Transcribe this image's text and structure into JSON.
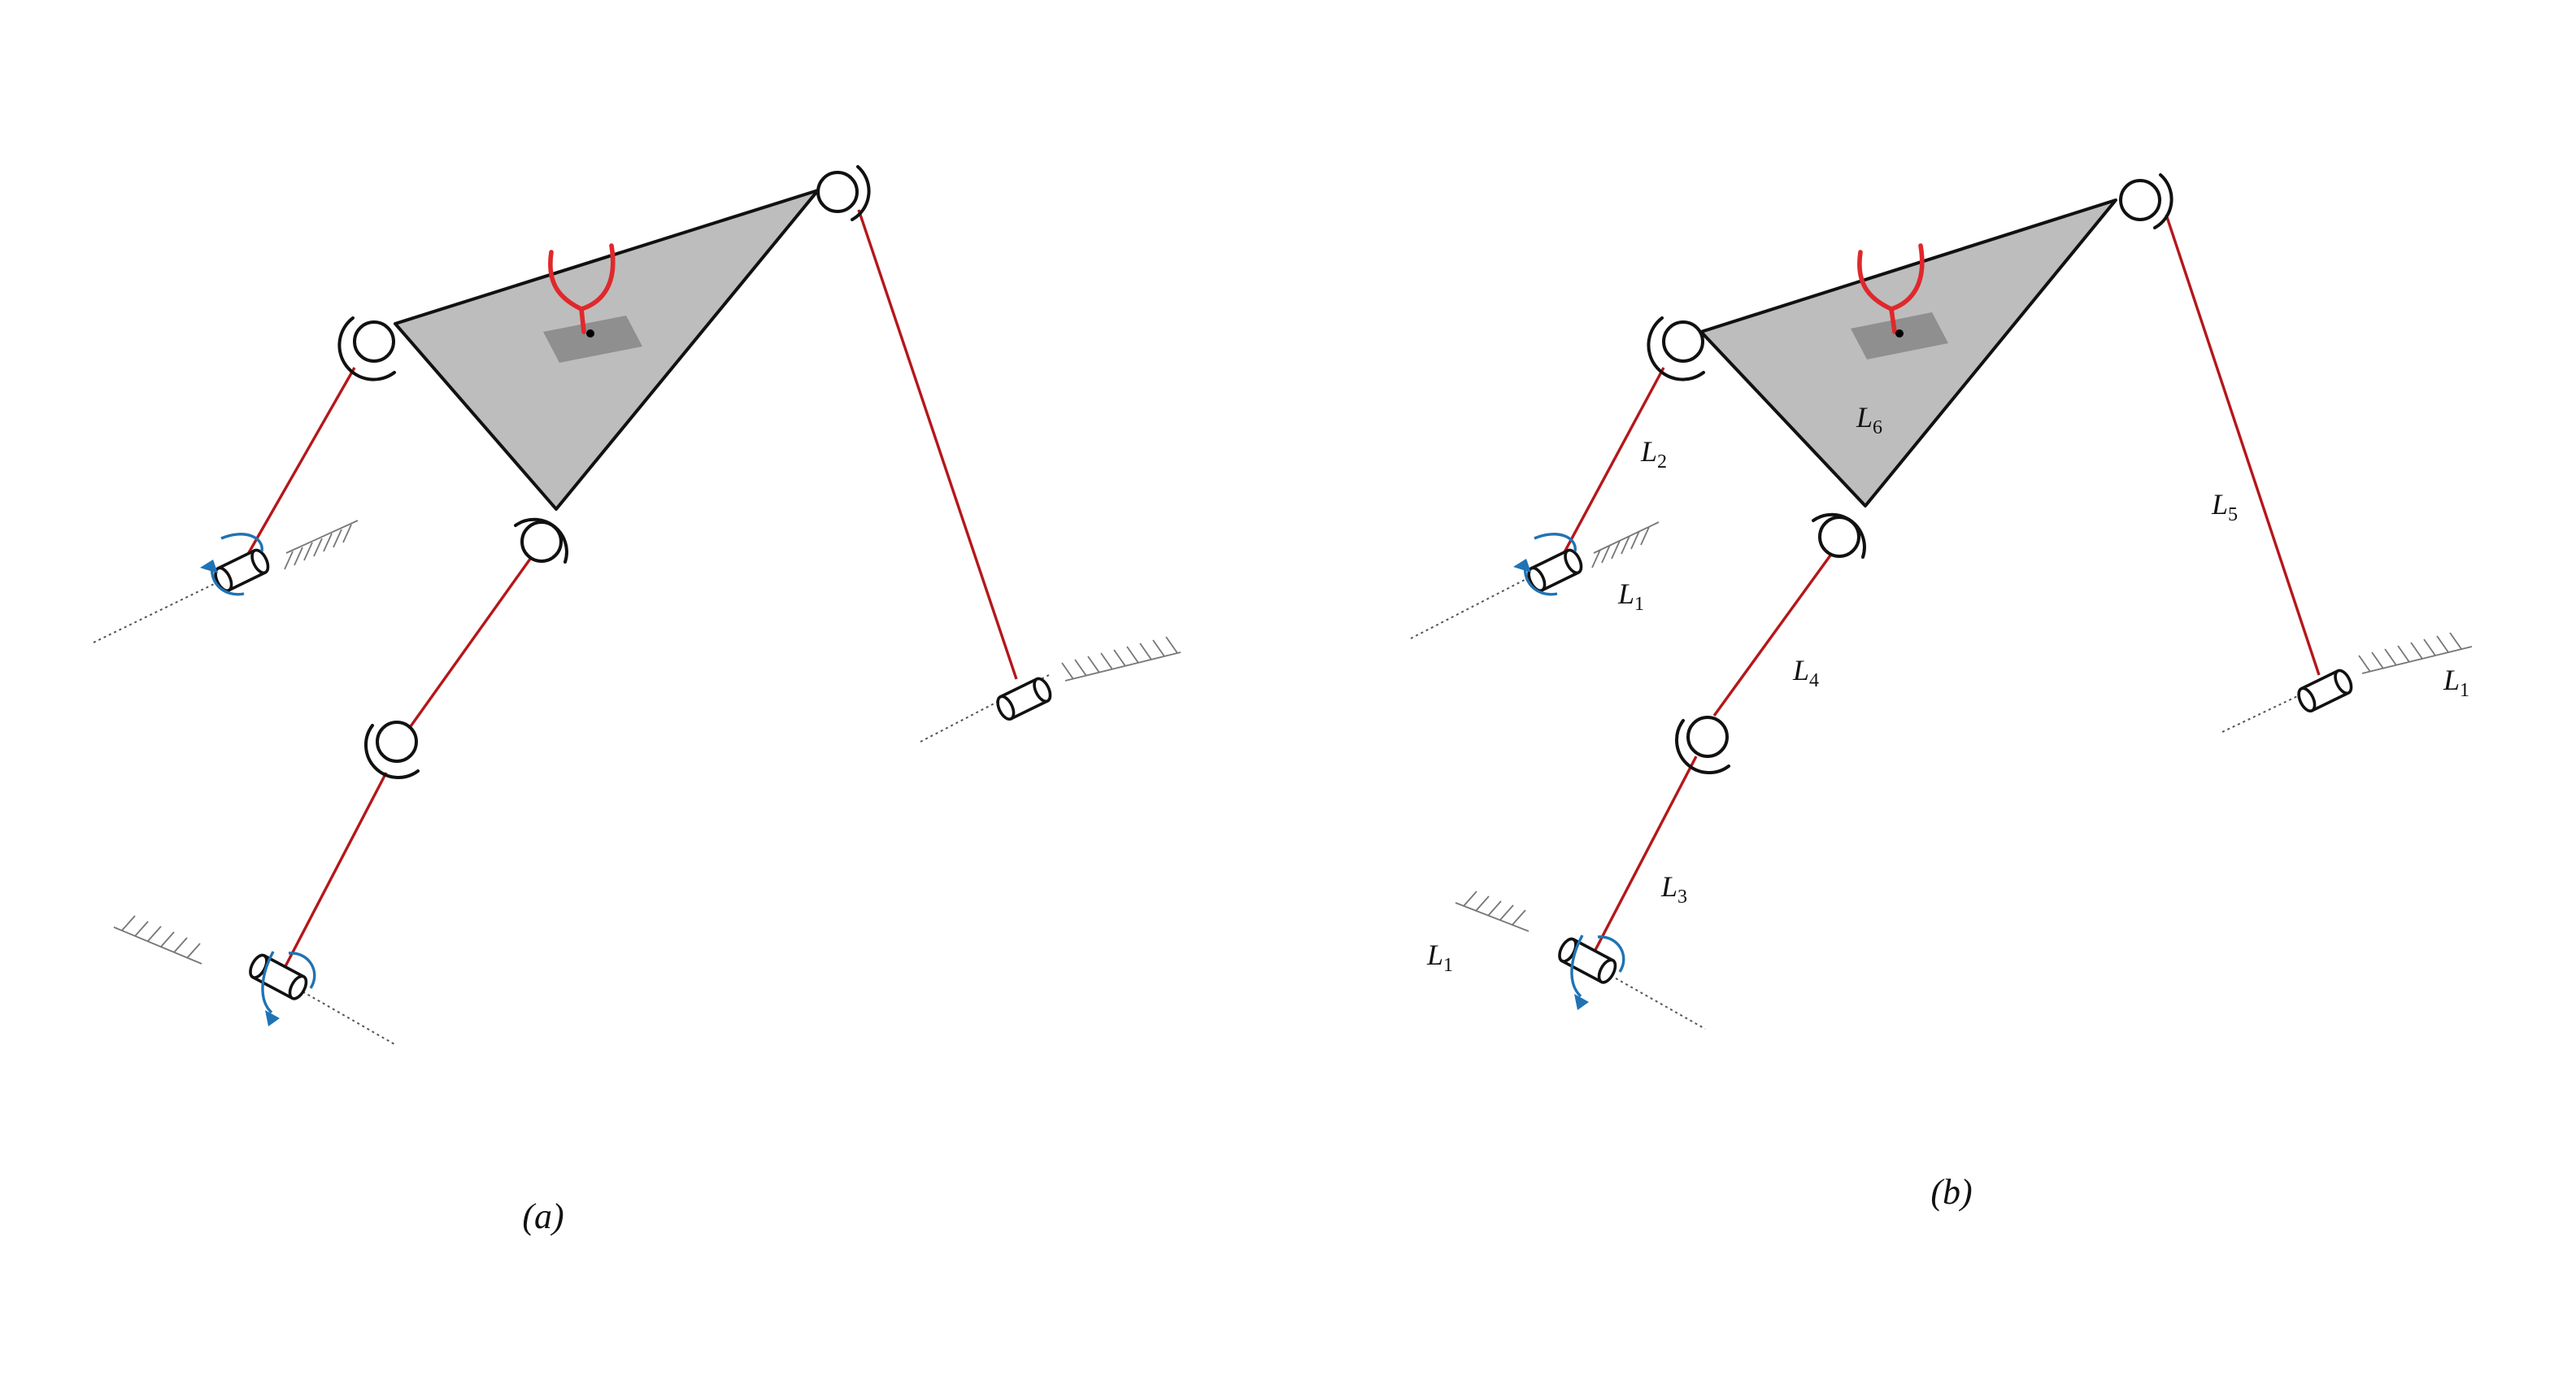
{
  "captions": {
    "a": "(a)",
    "b": "(b)"
  },
  "labels": {
    "L1": {
      "base": "L",
      "sub": "1"
    },
    "L2": {
      "base": "L",
      "sub": "2"
    },
    "L3": {
      "base": "L",
      "sub": "3"
    },
    "L4": {
      "base": "L",
      "sub": "4"
    },
    "L5": {
      "base": "L",
      "sub": "5"
    },
    "L6": {
      "base": "L",
      "sub": "6"
    }
  },
  "colors": {
    "link": "#b5171a",
    "platform": "#bdbdbd",
    "gripper": "#e0282b",
    "rotation_arrow": "#1f73b5",
    "outline": "#111111"
  },
  "icons": {
    "revolute_joint": "circle-with-arc",
    "actuated_joint": "cylinder-with-rotation-arrow",
    "ground": "hatched-line",
    "end_effector": "gripper"
  }
}
